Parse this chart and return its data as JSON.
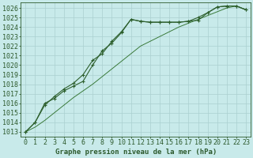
{
  "title": "Graphe pression niveau de la mer (hPa)",
  "x_hours": [
    0,
    1,
    2,
    3,
    4,
    5,
    6,
    7,
    8,
    9,
    10,
    11,
    12,
    13,
    14,
    15,
    16,
    17,
    18,
    19,
    20,
    21,
    22,
    23
  ],
  "series_marked1": [
    1013,
    1014,
    1016,
    1016.5,
    1017.3,
    1017.8,
    1018.3,
    1020,
    1021.5,
    1022.3,
    1023.4,
    1024.8,
    1024.6,
    1024.5,
    1024.5,
    1024.5,
    1024.5,
    1024.6,
    1024.7,
    1025.5,
    1026.1,
    1026.2,
    1026.2,
    1025.8
  ],
  "series_marked2": [
    1013,
    1014,
    1015.8,
    1016.7,
    1017.5,
    1018.1,
    1019.0,
    1020.5,
    1021.2,
    1022.5,
    1023.5,
    1024.8,
    1024.6,
    1024.5,
    1024.5,
    1024.5,
    1024.5,
    1024.6,
    1025.0,
    1025.5,
    1026.1,
    1026.2,
    1026.2,
    1025.8
  ],
  "series_smooth": [
    1013,
    1013.5,
    1014.2,
    1015.0,
    1015.8,
    1016.6,
    1017.3,
    1018.0,
    1018.8,
    1019.6,
    1020.4,
    1021.2,
    1022.0,
    1022.5,
    1023.0,
    1023.5,
    1024.0,
    1024.4,
    1024.8,
    1025.2,
    1025.6,
    1026.0,
    1026.2,
    1025.8
  ],
  "dark_green": "#2d5f2d",
  "mid_green": "#3a7a3a",
  "bg_color": "#c8eaea",
  "grid_color": "#aad0d0",
  "text_color": "#2d5a2d",
  "ylim_min": 1012.5,
  "ylim_max": 1026.6,
  "yticks": [
    1013,
    1014,
    1015,
    1016,
    1017,
    1018,
    1019,
    1020,
    1021,
    1022,
    1023,
    1024,
    1025,
    1026
  ],
  "font_size": 6.5
}
